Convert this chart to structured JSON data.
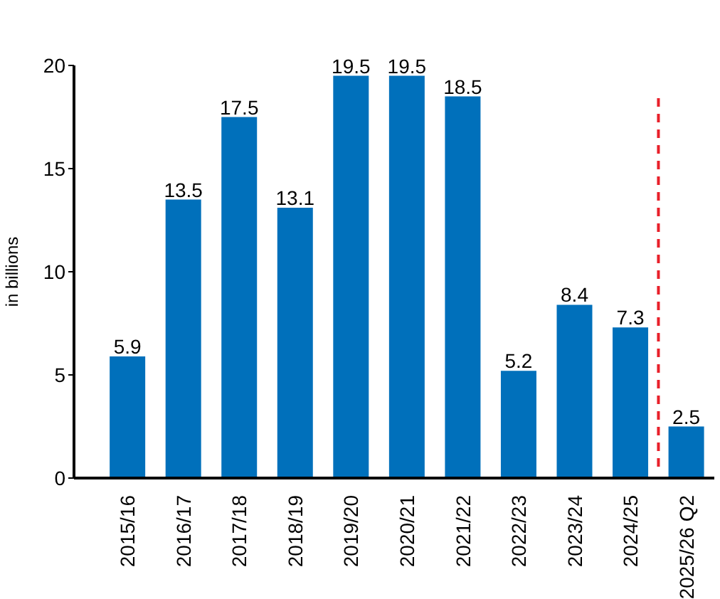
{
  "chart_data": {
    "type": "bar",
    "categories": [
      "2015/16",
      "2016/17",
      "2017/18",
      "2018/19",
      "2019/20",
      "2020/21",
      "2021/22",
      "2022/23",
      "2023/24",
      "2024/25",
      "2025/26 Q2"
    ],
    "values": [
      5.9,
      13.5,
      17.5,
      13.1,
      19.5,
      19.5,
      18.5,
      5.2,
      8.4,
      7.3,
      2.5
    ],
    "color": "#0070bb",
    "ylabel": "in billions",
    "ylim": [
      0,
      20
    ],
    "yticks": [
      0,
      5,
      10,
      15,
      20
    ],
    "data_labels": true,
    "grid": false,
    "legend": false,
    "ref_lines": [
      {
        "axis": "x",
        "value": "2025/26 Q2",
        "color": "#e8202a",
        "line_style": "dashed"
      }
    ]
  }
}
